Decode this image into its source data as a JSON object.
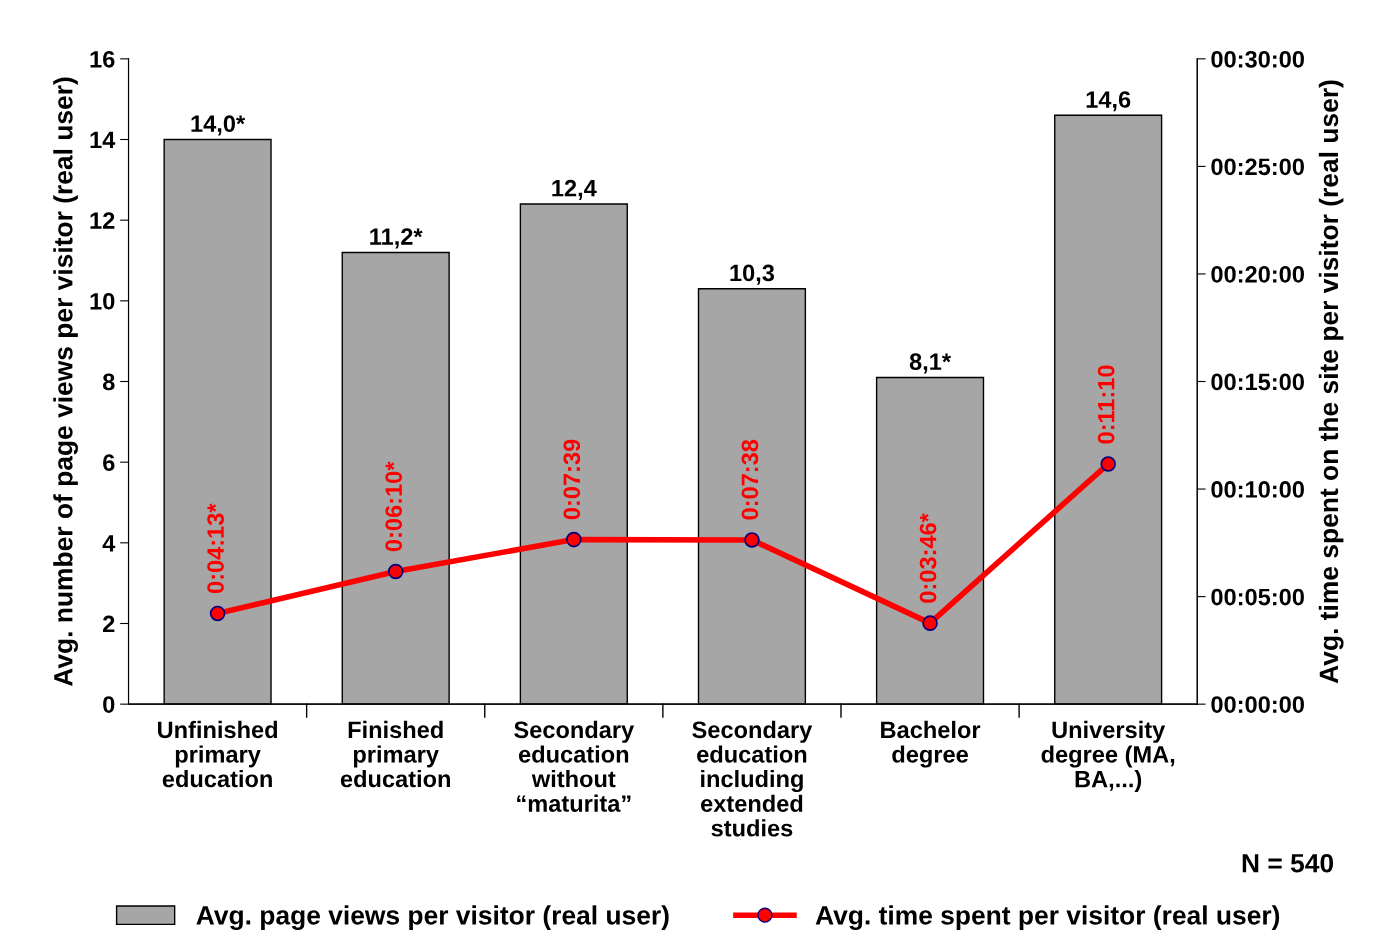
{
  "chart_data": {
    "type": "bar",
    "categories": [
      "Unfinished primary education",
      "Finished primary education",
      "Secondary education without “maturita”",
      "Secondary education including extended studies",
      "Bachelor degree",
      "University degree (MA, BA,...)"
    ],
    "ylabel": "Avg. number of page views per visitor (real user)",
    "y2label": "Avg. time spent on the site per visitor (real user)",
    "ylim": [
      0,
      16
    ],
    "yticks": [
      0,
      2,
      4,
      6,
      8,
      10,
      12,
      14,
      16
    ],
    "y2lim": [
      0,
      30
    ],
    "y2ticks": [
      {
        "value": 0,
        "label": "00:00:00"
      },
      {
        "value": 5,
        "label": "00:05:00"
      },
      {
        "value": 10,
        "label": "00:10:00"
      },
      {
        "value": 15,
        "label": "00:15:00"
      },
      {
        "value": 20,
        "label": "00:20:00"
      },
      {
        "value": 25,
        "label": "00:25:00"
      },
      {
        "value": 30,
        "label": "00:30:00"
      }
    ],
    "series": [
      {
        "name": "Avg. page views per visitor (real user)",
        "color": "#a6a6a6",
        "values": [
          14.0,
          11.2,
          12.4,
          10.3,
          8.1,
          14.6
        ],
        "value_labels": [
          "14,0*",
          "11,2*",
          "12,4",
          "10,3",
          "8,1*",
          "14,6"
        ]
      },
      {
        "name": "Avg. time spent per visitor (real user)",
        "type": "line",
        "axis": "y2",
        "color": "#ff0000",
        "marker": "circle",
        "values": [
          4.2167,
          6.1667,
          7.65,
          7.6333,
          3.7667,
          11.1667
        ],
        "value_labels": [
          "0:04:13*",
          "0:06:10*",
          "0:07:39",
          "0:07:38",
          "0:03:46*",
          "0:11:10"
        ]
      }
    ],
    "annotations": [
      "N = 540"
    ],
    "grid": false,
    "legend": "bottom"
  }
}
